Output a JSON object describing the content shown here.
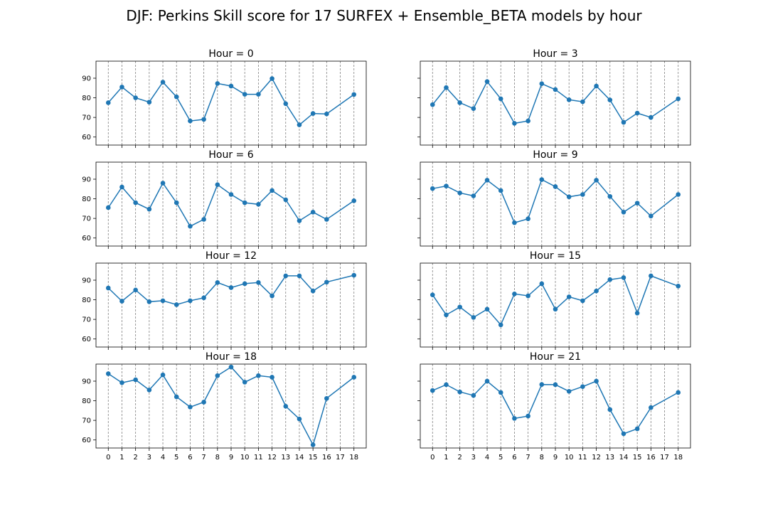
{
  "figure": {
    "title": "DJF: Perkins Skill score for 17 SURFEX + Ensemble_BETA models by hour"
  },
  "chart_data": [
    {
      "type": "line",
      "title": "Hour = 0",
      "x": [
        0,
        1,
        2,
        3,
        4,
        5,
        6,
        7,
        8,
        9,
        10,
        11,
        12,
        13,
        14,
        15,
        16,
        18
      ],
      "series": [
        {
          "values": [
            77.5,
            85.5,
            80,
            77.8,
            88,
            80.5,
            68.2,
            69,
            87.3,
            86,
            81.8,
            81.8,
            89.8,
            77,
            66.2,
            72,
            71.8,
            81.7
          ]
        }
      ],
      "xticks": [
        0,
        1,
        2,
        3,
        4,
        5,
        6,
        7,
        8,
        9,
        10,
        11,
        12,
        13,
        14,
        15,
        16,
        17,
        18
      ],
      "yticks": [
        60,
        70,
        80,
        90
      ],
      "xlim": [
        -0.9,
        18.9
      ],
      "ylim": [
        55.9,
        98.7
      ],
      "grid": "vertical dashed",
      "color": "#1f77b4"
    },
    {
      "type": "line",
      "title": "Hour = 3",
      "x": [
        0,
        1,
        2,
        3,
        4,
        5,
        6,
        7,
        8,
        9,
        10,
        11,
        12,
        13,
        14,
        15,
        16,
        18
      ],
      "series": [
        {
          "values": [
            76.5,
            85.2,
            77.5,
            74.5,
            88.3,
            79.5,
            67,
            68.2,
            87.2,
            84.2,
            79,
            78,
            86,
            78.9,
            67.5,
            72.2,
            70,
            79.5
          ]
        }
      ],
      "xticks": [
        0,
        1,
        2,
        3,
        4,
        5,
        6,
        7,
        8,
        9,
        10,
        11,
        12,
        13,
        14,
        15,
        16,
        17,
        18
      ],
      "yticks": [
        60,
        70,
        80,
        90
      ],
      "xlim": [
        -0.9,
        18.9
      ],
      "ylim": [
        55.9,
        98.7
      ],
      "grid": "vertical dashed",
      "color": "#1f77b4"
    },
    {
      "type": "line",
      "title": "Hour = 6",
      "x": [
        0,
        1,
        2,
        3,
        4,
        5,
        6,
        7,
        8,
        9,
        10,
        11,
        12,
        13,
        14,
        15,
        16,
        18
      ],
      "series": [
        {
          "values": [
            75.5,
            86,
            78,
            74.7,
            88,
            78,
            66,
            69.5,
            87.2,
            82.2,
            78,
            77.2,
            84.2,
            79.5,
            68.8,
            73.2,
            69.5,
            79
          ]
        }
      ],
      "xticks": [
        0,
        1,
        2,
        3,
        4,
        5,
        6,
        7,
        8,
        9,
        10,
        11,
        12,
        13,
        14,
        15,
        16,
        17,
        18
      ],
      "yticks": [
        60,
        70,
        80,
        90
      ],
      "xlim": [
        -0.9,
        18.9
      ],
      "ylim": [
        55.9,
        98.7
      ],
      "grid": "vertical dashed",
      "color": "#1f77b4"
    },
    {
      "type": "line",
      "title": "Hour = 9",
      "x": [
        0,
        1,
        2,
        3,
        4,
        5,
        6,
        7,
        8,
        9,
        10,
        11,
        12,
        13,
        14,
        15,
        16,
        18
      ],
      "series": [
        {
          "values": [
            85.2,
            86.5,
            83,
            81.5,
            89.5,
            84.2,
            67.8,
            69.8,
            89.8,
            86.2,
            81,
            82.2,
            89.5,
            81.2,
            73.2,
            77.8,
            71.2,
            82.2
          ]
        }
      ],
      "xticks": [
        0,
        1,
        2,
        3,
        4,
        5,
        6,
        7,
        8,
        9,
        10,
        11,
        12,
        13,
        14,
        15,
        16,
        17,
        18
      ],
      "yticks": [
        60,
        70,
        80,
        90
      ],
      "xlim": [
        -0.9,
        18.9
      ],
      "ylim": [
        55.9,
        98.7
      ],
      "grid": "vertical dashed",
      "color": "#1f77b4"
    },
    {
      "type": "line",
      "title": "Hour = 12",
      "x": [
        0,
        1,
        2,
        3,
        4,
        5,
        6,
        7,
        8,
        9,
        10,
        11,
        12,
        13,
        14,
        15,
        16,
        18
      ],
      "series": [
        {
          "values": [
            86,
            79.3,
            85,
            79,
            79.5,
            77.5,
            79.5,
            81,
            88.8,
            86.2,
            88.2,
            88.8,
            82,
            92.2,
            92.2,
            84.5,
            89,
            92.5
          ]
        }
      ],
      "xticks": [
        0,
        1,
        2,
        3,
        4,
        5,
        6,
        7,
        8,
        9,
        10,
        11,
        12,
        13,
        14,
        15,
        16,
        17,
        18
      ],
      "yticks": [
        60,
        70,
        80,
        90
      ],
      "xlim": [
        -0.9,
        18.9
      ],
      "ylim": [
        55.9,
        98.7
      ],
      "grid": "vertical dashed",
      "color": "#1f77b4"
    },
    {
      "type": "line",
      "title": "Hour = 15",
      "x": [
        0,
        1,
        2,
        3,
        4,
        5,
        6,
        7,
        8,
        9,
        10,
        11,
        12,
        13,
        14,
        15,
        16,
        18
      ],
      "series": [
        {
          "values": [
            82.5,
            72.3,
            76.3,
            71,
            75.2,
            67.2,
            83,
            82,
            88.2,
            75.2,
            81.5,
            79.5,
            84.5,
            90.3,
            91.3,
            73.2,
            92.2,
            87
          ]
        }
      ],
      "xticks": [
        0,
        1,
        2,
        3,
        4,
        5,
        6,
        7,
        8,
        9,
        10,
        11,
        12,
        13,
        14,
        15,
        16,
        17,
        18
      ],
      "yticks": [
        60,
        70,
        80,
        90
      ],
      "xlim": [
        -0.9,
        18.9
      ],
      "ylim": [
        55.9,
        98.7
      ],
      "grid": "vertical dashed",
      "color": "#1f77b4"
    },
    {
      "type": "line",
      "title": "Hour = 18",
      "x": [
        0,
        1,
        2,
        3,
        4,
        5,
        6,
        7,
        8,
        9,
        10,
        11,
        12,
        13,
        14,
        15,
        16,
        18
      ],
      "series": [
        {
          "values": [
            93.8,
            89.2,
            90.7,
            85.5,
            93.2,
            82,
            76.8,
            79.3,
            92.8,
            97.2,
            89.5,
            92.8,
            92,
            77.2,
            70.7,
            57.5,
            81.2,
            92
          ]
        }
      ],
      "xticks": [
        0,
        1,
        2,
        3,
        4,
        5,
        6,
        7,
        8,
        9,
        10,
        11,
        12,
        13,
        14,
        15,
        16,
        17,
        18
      ],
      "yticks": [
        60,
        70,
        80,
        90
      ],
      "xlim": [
        -0.9,
        18.9
      ],
      "ylim": [
        55.9,
        98.7
      ],
      "grid": "vertical dashed",
      "color": "#1f77b4"
    },
    {
      "type": "line",
      "title": "Hour = 21",
      "x": [
        0,
        1,
        2,
        3,
        4,
        5,
        6,
        7,
        8,
        9,
        10,
        11,
        12,
        13,
        14,
        15,
        16,
        18
      ],
      "series": [
        {
          "values": [
            85.2,
            88.2,
            84.5,
            82.7,
            90,
            84.2,
            71,
            72.2,
            88.3,
            88.2,
            84.8,
            87.2,
            90,
            75.5,
            63.2,
            65.7,
            76.5,
            84.2
          ]
        }
      ],
      "xticks": [
        0,
        1,
        2,
        3,
        4,
        5,
        6,
        7,
        8,
        9,
        10,
        11,
        12,
        13,
        14,
        15,
        16,
        17,
        18
      ],
      "yticks": [
        60,
        70,
        80,
        90
      ],
      "xlim": [
        -0.9,
        18.9
      ],
      "ylim": [
        55.9,
        98.7
      ],
      "grid": "vertical dashed",
      "color": "#1f77b4"
    }
  ]
}
